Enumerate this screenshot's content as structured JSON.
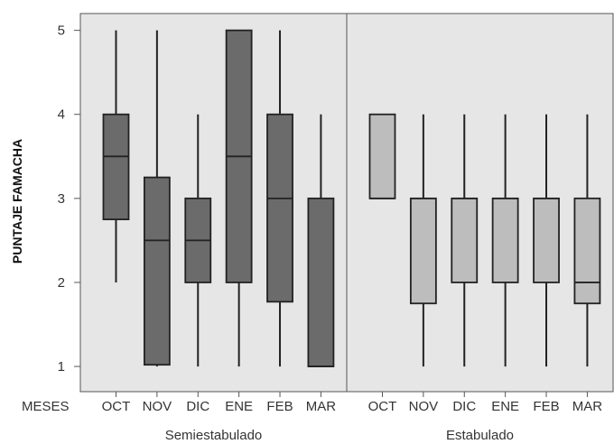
{
  "chart_data": {
    "type": "boxplot",
    "ylabel": "PUNTAJE FAMACHA",
    "xlabel": "MESES",
    "ylim": [
      0.7,
      5.2
    ],
    "yticks": [
      "1",
      "2",
      "3",
      "4",
      "5"
    ],
    "grid": false,
    "colors": {
      "panel_bg": "#e6e6e6",
      "box_dark": "#6b6b6b",
      "box_light": "#bdbdbd",
      "line": "#222222"
    },
    "groups": [
      {
        "name": "Semiestabulado",
        "box_color": "#6b6b6b",
        "categories": [
          "OCT",
          "NOV",
          "DIC",
          "ENE",
          "FEB",
          "MAR"
        ],
        "boxes": [
          {
            "min": 2,
            "q1": 2.75,
            "median": 3.5,
            "q3": 4,
            "max": 5
          },
          {
            "min": 1,
            "q1": 1.02,
            "median": 2.5,
            "q3": 3.25,
            "max": 5
          },
          {
            "min": 1,
            "q1": 2,
            "median": 2.5,
            "q3": 3,
            "max": 4
          },
          {
            "min": 1,
            "q1": 2,
            "median": 3.5,
            "q3": 5,
            "max": 5
          },
          {
            "min": 1,
            "q1": 1.77,
            "median": 3,
            "q3": 4,
            "max": 5
          },
          {
            "min": 1,
            "q1": 1,
            "median": 1,
            "q3": 3,
            "max": 4
          }
        ]
      },
      {
        "name": "Estabulado",
        "box_color": "#bdbdbd",
        "categories": [
          "OCT",
          "NOV",
          "DIC",
          "ENE",
          "FEB",
          "MAR"
        ],
        "boxes": [
          {
            "min": 3,
            "q1": 3,
            "median": 3,
            "q3": 4,
            "max": 4
          },
          {
            "min": 1,
            "q1": 1.75,
            "median": 3,
            "q3": 3,
            "max": 4
          },
          {
            "min": 1,
            "q1": 2,
            "median": 3,
            "q3": 3,
            "max": 4
          },
          {
            "min": 1,
            "q1": 2,
            "median": 3,
            "q3": 3,
            "max": 4
          },
          {
            "min": 1,
            "q1": 2,
            "median": 3,
            "q3": 3,
            "max": 4
          },
          {
            "min": 1,
            "q1": 1.75,
            "median": 2,
            "q3": 3,
            "max": 4
          }
        ]
      }
    ]
  }
}
